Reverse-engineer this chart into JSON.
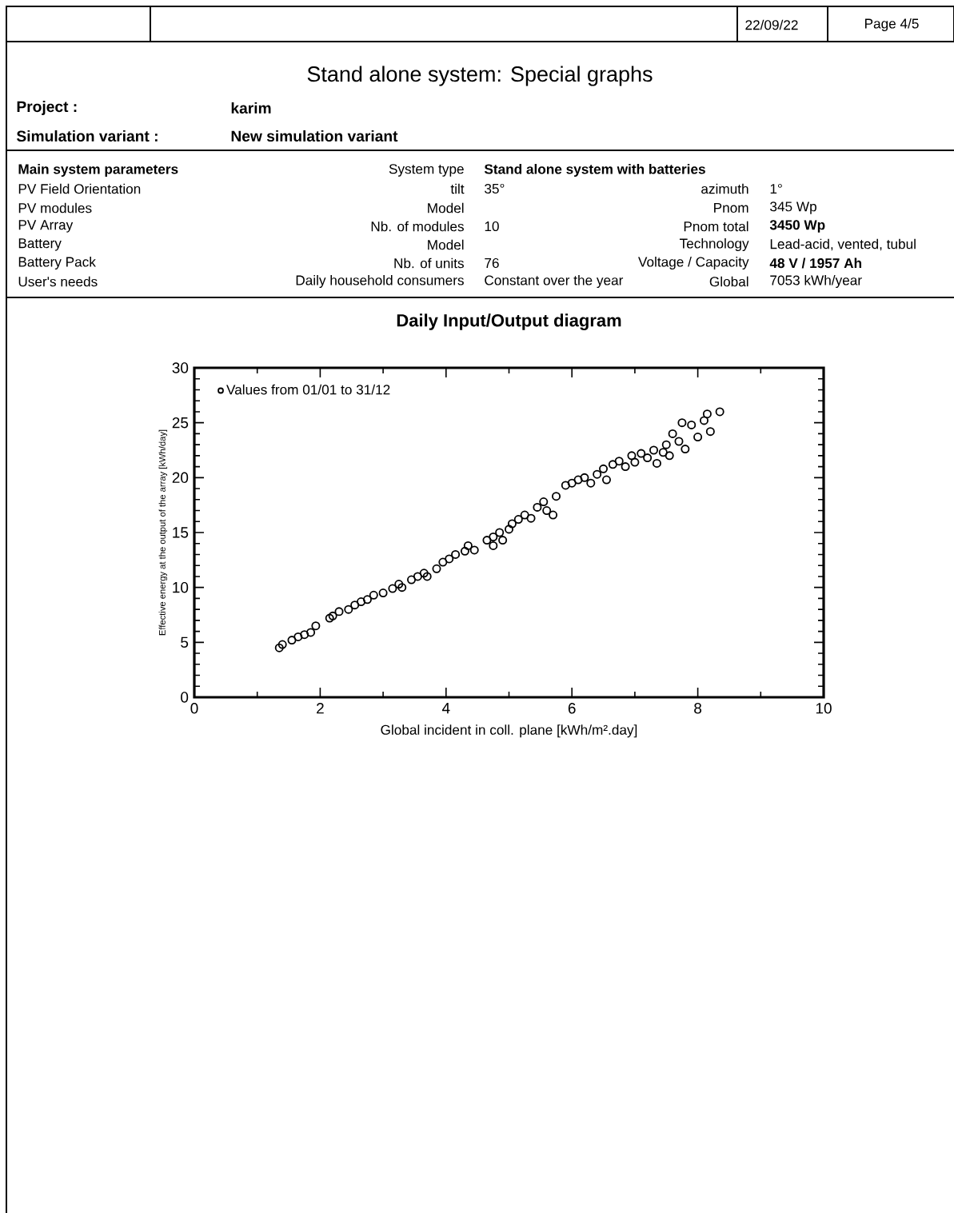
{
  "chart_data": {
    "type": "scatter",
    "title": "Daily Input/Output diagram",
    "xlabel": "Global incident in coll. plane [kWh/m².day]",
    "ylabel": "Effective energy at the output of the array [kWh/day]",
    "xlim": [
      0,
      10
    ],
    "ylim": [
      0,
      30
    ],
    "xticks": [
      0,
      2,
      4,
      6,
      8,
      10
    ],
    "yticks": [
      0,
      5,
      10,
      15,
      20,
      25,
      30
    ],
    "marker": "circle",
    "legend": "top left",
    "annotations": [
      "Stand alone system: Special graphs",
      "22/09/22",
      "Page 4/5",
      "Project :",
      "karim",
      "Simulation variant :",
      "New simulation variant",
      "Main system parameters",
      "System type",
      "Stand alone system with batteries",
      "PV Field Orientation",
      "tilt",
      "35°",
      "azimuth",
      "1°",
      "PV modules",
      "Model",
      "Pnom",
      "345 Wp",
      "PV Array",
      "Nb. of modules",
      "10",
      "Pnom total",
      "3450 Wp",
      "Battery",
      "Model",
      "Technology",
      "Lead-acid, vented, tubul",
      "Battery Pack",
      "Nb. of units",
      "76",
      "Voltage / Capacity",
      "48 V / 1957 Ah",
      "User's needs",
      "Daily household consumers",
      "Constant over the year",
      "Global",
      "7053 kWh/year"
    ],
    "series": [
      {
        "name": "Values from 01/01 to 31/12",
        "color": "#000000",
        "x": [
          1.35,
          1.4,
          1.55,
          1.65,
          1.75,
          1.85,
          1.93,
          2.15,
          2.2,
          2.3,
          2.45,
          2.55,
          2.65,
          2.75,
          2.85,
          3.0,
          3.15,
          3.25,
          3.3,
          3.45,
          3.55,
          3.65,
          3.7,
          3.85,
          3.95,
          4.05,
          4.15,
          4.3,
          4.35,
          4.45,
          4.65,
          4.75,
          4.75,
          4.85,
          4.9,
          5.0,
          5.05,
          5.15,
          5.25,
          5.35,
          5.45,
          5.55,
          5.6,
          5.7,
          5.75,
          5.9,
          6.0,
          6.1,
          6.2,
          6.3,
          6.4,
          6.5,
          6.55,
          6.65,
          6.75,
          6.85,
          6.95,
          7.0,
          7.1,
          7.2,
          7.3,
          7.35,
          7.45,
          7.5,
          7.55,
          7.6,
          7.7,
          7.75,
          7.8,
          7.9,
          8.0,
          8.1,
          8.15,
          8.2,
          8.35
        ],
        "values": [
          4.5,
          4.8,
          5.2,
          5.5,
          5.7,
          5.9,
          6.5,
          7.2,
          7.4,
          7.8,
          8.0,
          8.4,
          8.7,
          8.9,
          9.3,
          9.5,
          9.9,
          10.3,
          10.0,
          10.7,
          11.0,
          11.3,
          11.0,
          11.7,
          12.3,
          12.6,
          13.0,
          13.3,
          13.8,
          13.4,
          14.3,
          14.6,
          13.8,
          15.0,
          14.3,
          15.3,
          15.8,
          16.2,
          16.6,
          16.3,
          17.3,
          17.8,
          17.0,
          16.6,
          18.3,
          19.3,
          19.5,
          19.8,
          20.0,
          19.5,
          20.3,
          20.8,
          19.8,
          21.2,
          21.5,
          21.0,
          22.0,
          21.4,
          22.2,
          21.8,
          22.5,
          21.3,
          22.3,
          23.0,
          22.0,
          24.0,
          23.3,
          25.0,
          22.6,
          24.8,
          23.7,
          25.2,
          25.8,
          24.2,
          26.0
        ]
      }
    ]
  }
}
